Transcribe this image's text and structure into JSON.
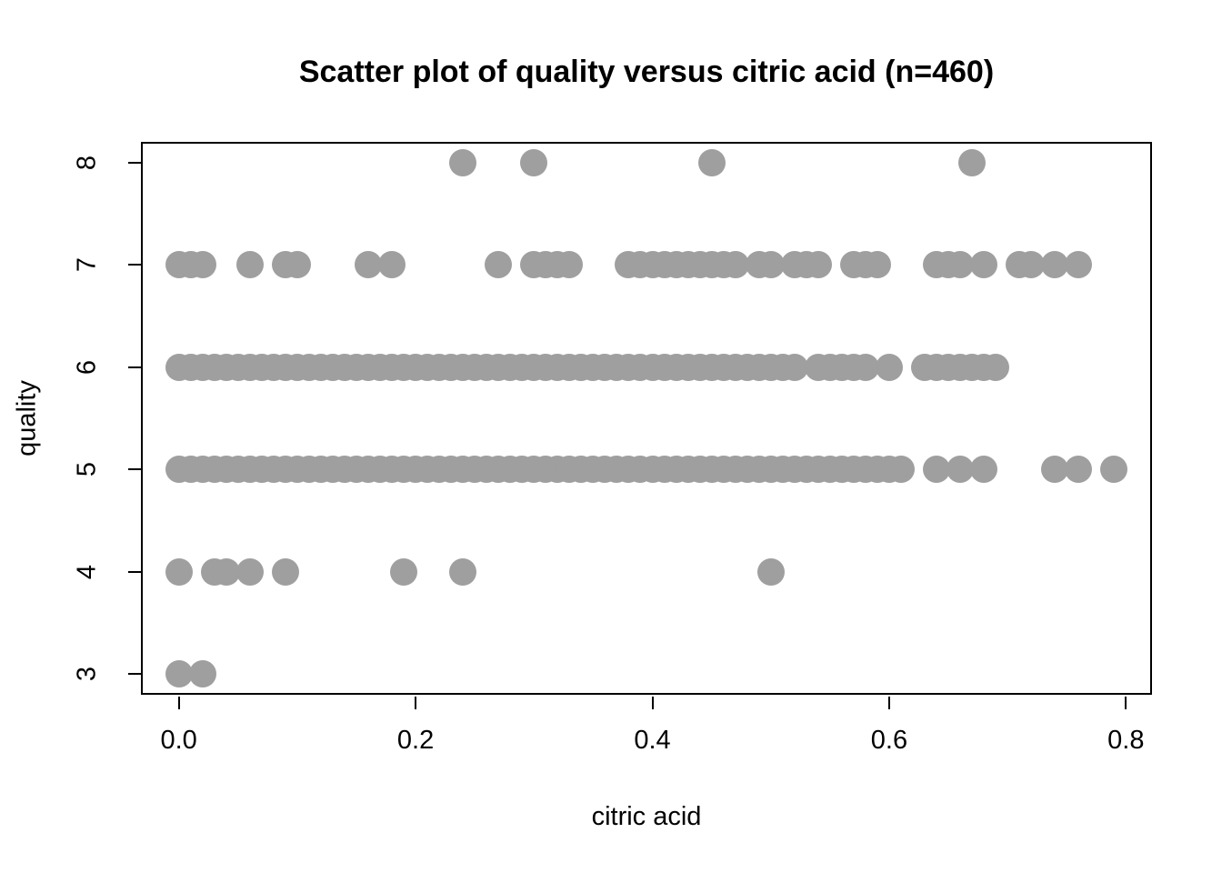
{
  "title": "Scatter plot of quality versus citric acid (n=460)",
  "chart_data": {
    "type": "scatter",
    "title": "Scatter plot of quality versus citric acid (n=460)",
    "xlabel": "citric acid",
    "ylabel": "quality",
    "n": 460,
    "point_color": "#9f9f9f",
    "x_ticks": [
      "0.0",
      "0.2",
      "0.4",
      "0.6",
      "0.8"
    ],
    "x_tick_values": [
      0.0,
      0.2,
      0.4,
      0.6,
      0.8
    ],
    "y_ticks": [
      "3",
      "4",
      "5",
      "6",
      "7",
      "8"
    ],
    "y_tick_values": [
      3,
      4,
      5,
      6,
      7,
      8
    ],
    "xlim": [
      -0.032,
      0.822
    ],
    "ylim": [
      2.8,
      8.2
    ],
    "grid": false,
    "legend": "none",
    "series": [
      {
        "name": "quality-3",
        "quality": 3,
        "citric_acid": [
          0,
          0.02
        ]
      },
      {
        "name": "quality-4",
        "quality": 4,
        "citric_acid": [
          0,
          0.03,
          0.04,
          0.06,
          0.09,
          0.19,
          0.24,
          0.5
        ]
      },
      {
        "name": "quality-5",
        "quality": 5,
        "citric_acid": [
          0,
          0.01,
          0.02,
          0.03,
          0.04,
          0.05,
          0.06,
          0.07,
          0.08,
          0.09,
          0.1,
          0.11,
          0.12,
          0.13,
          0.14,
          0.15,
          0.16,
          0.17,
          0.18,
          0.19,
          0.2,
          0.21,
          0.22,
          0.23,
          0.24,
          0.25,
          0.26,
          0.27,
          0.28,
          0.29,
          0.3,
          0.31,
          0.32,
          0.33,
          0.34,
          0.35,
          0.36,
          0.37,
          0.38,
          0.39,
          0.4,
          0.41,
          0.42,
          0.43,
          0.44,
          0.45,
          0.46,
          0.47,
          0.48,
          0.49,
          0.5,
          0.51,
          0.52,
          0.53,
          0.54,
          0.55,
          0.56,
          0.57,
          0.58,
          0.59,
          0.6,
          0.61,
          0.64,
          0.66,
          0.68,
          0.74,
          0.76,
          0.79
        ]
      },
      {
        "name": "quality-6",
        "quality": 6,
        "citric_acid": [
          0,
          0.01,
          0.02,
          0.03,
          0.04,
          0.05,
          0.06,
          0.07,
          0.08,
          0.09,
          0.1,
          0.11,
          0.12,
          0.13,
          0.14,
          0.15,
          0.16,
          0.17,
          0.18,
          0.19,
          0.2,
          0.21,
          0.22,
          0.23,
          0.24,
          0.25,
          0.26,
          0.27,
          0.28,
          0.29,
          0.3,
          0.31,
          0.32,
          0.33,
          0.34,
          0.35,
          0.36,
          0.37,
          0.38,
          0.39,
          0.4,
          0.41,
          0.42,
          0.43,
          0.44,
          0.45,
          0.46,
          0.47,
          0.48,
          0.49,
          0.5,
          0.51,
          0.52,
          0.54,
          0.55,
          0.56,
          0.57,
          0.58,
          0.6,
          0.63,
          0.64,
          0.65,
          0.66,
          0.67,
          0.68,
          0.69
        ]
      },
      {
        "name": "quality-7",
        "quality": 7,
        "citric_acid": [
          0,
          0.01,
          0.02,
          0.06,
          0.09,
          0.1,
          0.16,
          0.18,
          0.27,
          0.3,
          0.31,
          0.32,
          0.33,
          0.38,
          0.39,
          0.4,
          0.41,
          0.42,
          0.43,
          0.44,
          0.45,
          0.46,
          0.47,
          0.49,
          0.5,
          0.52,
          0.53,
          0.54,
          0.57,
          0.58,
          0.59,
          0.64,
          0.65,
          0.66,
          0.68,
          0.71,
          0.72,
          0.74,
          0.76
        ]
      },
      {
        "name": "quality-8",
        "quality": 8,
        "citric_acid": [
          0.24,
          0.3,
          0.45,
          0.67
        ]
      }
    ]
  }
}
